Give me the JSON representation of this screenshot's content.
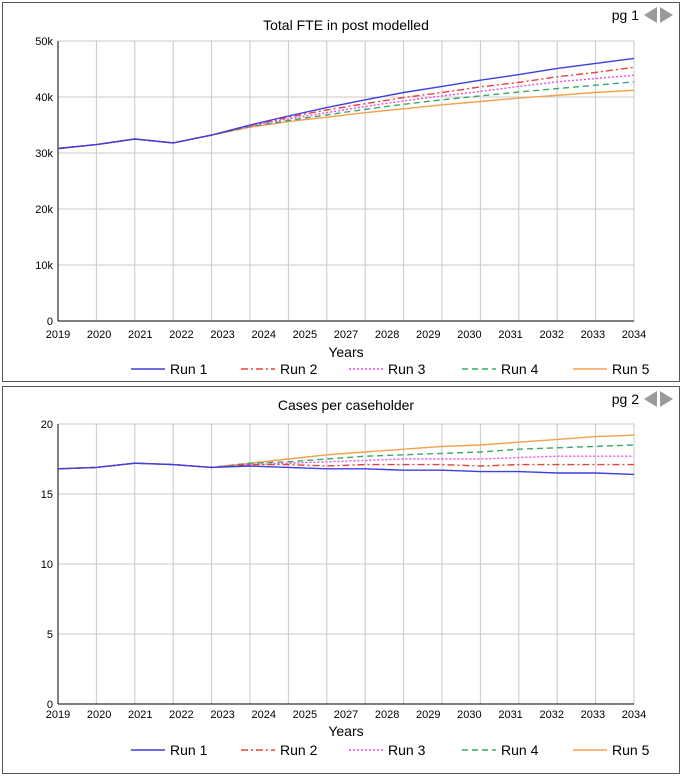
{
  "charts": [
    {
      "page_label": "pg 1",
      "title": "Total FTE in post modelled",
      "xlabel": "Years",
      "y_tick_labels": [
        "0",
        "10k",
        "20k",
        "30k",
        "40k",
        "50k"
      ],
      "legend": [
        "Run 1",
        "Run 2",
        "Run 3",
        "Run 4",
        "Run 5"
      ]
    },
    {
      "page_label": "pg 2",
      "title": "Cases per caseholder",
      "xlabel": "Years",
      "y_tick_labels": [
        "0",
        "5",
        "10",
        "15",
        "20"
      ],
      "legend": [
        "Run 1",
        "Run 2",
        "Run 3",
        "Run 4",
        "Run 5"
      ]
    }
  ],
  "series_styles": [
    {
      "color": "#3f3fdc",
      "dash": "none"
    },
    {
      "color": "#e8403a",
      "dash": "7,3,2,3"
    },
    {
      "color": "#e64ce6",
      "dash": "2,2"
    },
    {
      "color": "#3aa86b",
      "dash": "6,4"
    },
    {
      "color": "#f5a04a",
      "dash": "none"
    }
  ],
  "chart_data": [
    {
      "type": "line",
      "title": "Total FTE in post modelled",
      "xlabel": "Years",
      "ylabel": "",
      "x": [
        2019,
        2020,
        2021,
        2022,
        2023,
        2024,
        2025,
        2026,
        2027,
        2028,
        2029,
        2030,
        2031,
        2032,
        2033,
        2034
      ],
      "x_tick_labels": [
        "2019",
        "2020",
        "2021",
        "2022",
        "2023",
        "2024",
        "2025",
        "2027",
        "2028",
        "2029",
        "2030",
        "2031",
        "2032",
        "2033",
        "2034"
      ],
      "ylim": [
        0,
        50000
      ],
      "y_ticks": [
        0,
        10000,
        20000,
        30000,
        40000,
        50000
      ],
      "grid": true,
      "legend_position": "bottom",
      "series": [
        {
          "name": "Run 1",
          "values": [
            30800,
            31500,
            32500,
            31800,
            33200,
            35000,
            36600,
            38100,
            39500,
            40800,
            41900,
            43000,
            44000,
            45100,
            46000,
            46900
          ]
        },
        {
          "name": "Run 2",
          "values": [
            30800,
            31500,
            32500,
            31800,
            33200,
            34900,
            36400,
            37700,
            38800,
            39900,
            40800,
            41800,
            42600,
            43600,
            44400,
            45300
          ]
        },
        {
          "name": "Run 3",
          "values": [
            30800,
            31500,
            32500,
            31800,
            33200,
            34800,
            36100,
            37200,
            38300,
            39300,
            40200,
            41000,
            41900,
            42700,
            43300,
            43900
          ]
        },
        {
          "name": "Run 4",
          "values": [
            30800,
            31500,
            32500,
            31800,
            33200,
            34700,
            35800,
            36800,
            37800,
            38700,
            39500,
            40200,
            40900,
            41500,
            42100,
            42700
          ]
        },
        {
          "name": "Run 5",
          "values": [
            30800,
            31500,
            32500,
            31800,
            33200,
            34600,
            35600,
            36400,
            37200,
            37900,
            38600,
            39200,
            39800,
            40300,
            40800,
            41200
          ]
        }
      ]
    },
    {
      "type": "line",
      "title": "Cases per caseholder",
      "xlabel": "Years",
      "ylabel": "",
      "x": [
        2019,
        2020,
        2021,
        2022,
        2023,
        2024,
        2025,
        2026,
        2027,
        2028,
        2029,
        2030,
        2031,
        2032,
        2033,
        2034
      ],
      "x_tick_labels": [
        "2019",
        "2020",
        "2021",
        "2022",
        "2023",
        "2024",
        "2025",
        "2027",
        "2028",
        "2029",
        "2030",
        "2031",
        "2032",
        "2033",
        "2034"
      ],
      "ylim": [
        0,
        20
      ],
      "y_ticks": [
        0,
        5,
        10,
        15,
        20
      ],
      "grid": true,
      "legend_position": "bottom",
      "series": [
        {
          "name": "Run 1",
          "values": [
            16.8,
            16.9,
            17.2,
            17.1,
            16.9,
            17.0,
            16.9,
            16.8,
            16.8,
            16.7,
            16.7,
            16.6,
            16.6,
            16.5,
            16.5,
            16.4
          ]
        },
        {
          "name": "Run 2",
          "values": [
            16.8,
            16.9,
            17.2,
            17.1,
            16.9,
            17.1,
            17.1,
            17.0,
            17.1,
            17.1,
            17.1,
            17.0,
            17.1,
            17.1,
            17.1,
            17.1
          ]
        },
        {
          "name": "Run 3",
          "values": [
            16.8,
            16.9,
            17.2,
            17.1,
            16.9,
            17.1,
            17.2,
            17.3,
            17.4,
            17.5,
            17.5,
            17.5,
            17.6,
            17.7,
            17.7,
            17.7
          ]
        },
        {
          "name": "Run 4",
          "values": [
            16.8,
            16.9,
            17.2,
            17.1,
            16.9,
            17.2,
            17.3,
            17.5,
            17.7,
            17.8,
            17.9,
            18.0,
            18.2,
            18.3,
            18.4,
            18.5
          ]
        },
        {
          "name": "Run 5",
          "values": [
            16.8,
            16.9,
            17.2,
            17.1,
            16.9,
            17.2,
            17.5,
            17.8,
            18.0,
            18.2,
            18.4,
            18.5,
            18.7,
            18.9,
            19.1,
            19.2
          ]
        }
      ]
    }
  ]
}
